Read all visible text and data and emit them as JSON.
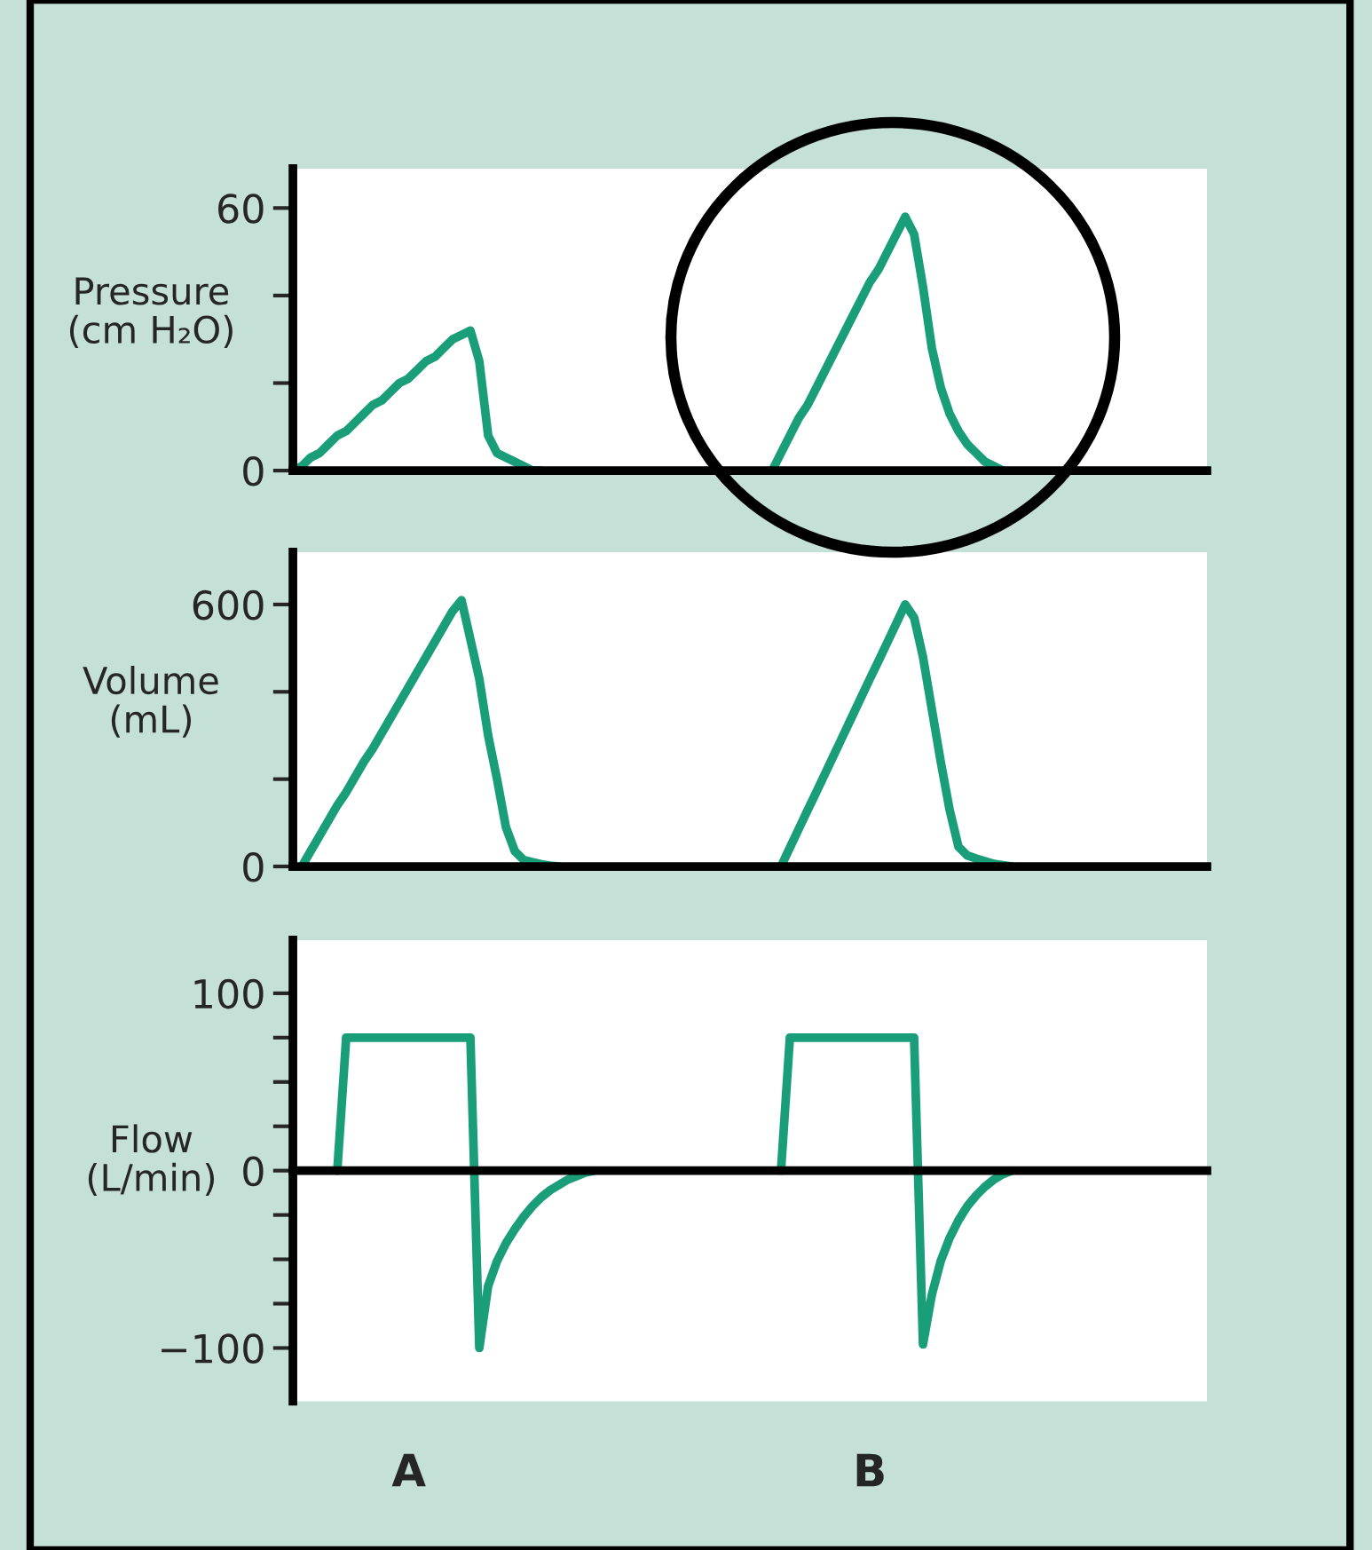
{
  "chart_data": [
    {
      "type": "line",
      "ylabel": "Pressure\n(cm H₂O)",
      "ylim": [
        0,
        69
      ],
      "yticks": [
        0,
        {
          "value": 20,
          "label": null
        },
        {
          "value": 40,
          "label": null
        },
        60
      ],
      "tick_labels": "y",
      "categories": [
        null,
        null,
        null,
        null,
        null,
        null,
        null,
        null,
        null,
        null,
        null,
        null,
        null,
        null,
        null,
        null,
        null,
        null,
        null,
        null,
        null,
        null,
        null,
        null,
        null,
        null,
        null,
        null,
        null,
        null,
        null,
        null,
        null,
        null,
        null,
        null,
        null,
        null,
        null,
        null,
        null,
        null,
        null,
        null,
        null,
        null,
        null,
        null,
        null,
        null,
        null,
        null,
        null,
        null,
        null,
        null,
        null,
        null,
        null,
        null,
        null,
        null,
        null,
        null,
        null,
        null,
        null,
        null,
        null,
        null,
        null,
        null,
        null,
        null,
        null,
        null,
        null,
        null,
        null,
        null,
        null,
        null,
        null,
        null,
        null,
        null,
        null,
        null,
        null,
        null,
        null,
        null,
        null,
        null,
        null,
        null,
        null,
        null,
        null,
        null,
        null,
        null,
        null,
        null
      ],
      "series": [
        {
          "color": "#1a9e7a",
          "values": [
            0,
            1,
            3,
            4,
            6,
            8,
            9,
            11,
            13,
            15,
            16,
            18,
            20,
            21,
            23,
            25,
            26,
            28,
            30,
            31,
            32,
            25,
            8,
            4,
            3,
            2,
            1,
            0,
            0,
            null,
            null,
            null,
            null,
            null,
            null,
            null,
            null,
            null,
            null,
            null,
            null,
            null,
            null,
            null,
            null,
            null,
            null,
            null,
            null,
            null,
            null,
            null,
            null,
            null,
            null,
            null,
            null,
            null,
            null,
            null,
            null,
            null,
            null,
            null,
            null,
            null,
            null,
            null,
            null,
            null,
            null,
            null,
            null,
            null,
            null,
            null,
            null,
            null,
            null,
            null,
            null,
            null,
            null,
            null,
            null,
            null,
            null,
            null,
            null,
            null,
            null,
            null,
            null,
            null,
            null,
            null,
            null,
            null,
            null,
            null,
            null,
            null,
            null,
            null
          ]
        },
        {
          "color": "#1a9e7a",
          "values": [
            null,
            null,
            null,
            null,
            null,
            null,
            null,
            null,
            null,
            null,
            null,
            null,
            null,
            null,
            null,
            null,
            null,
            null,
            null,
            null,
            null,
            null,
            null,
            null,
            null,
            null,
            null,
            null,
            null,
            null,
            null,
            null,
            null,
            null,
            null,
            null,
            null,
            null,
            null,
            null,
            null,
            null,
            null,
            null,
            null,
            null,
            null,
            null,
            null,
            null,
            null,
            null,
            null,
            null,
            0,
            4,
            8,
            12,
            15,
            19,
            23,
            27,
            31,
            35,
            39,
            43,
            46,
            50,
            54,
            58,
            54,
            42,
            28,
            19,
            13,
            9,
            6,
            4,
            2,
            1,
            0,
            null,
            null,
            null,
            null,
            null,
            null,
            null,
            null,
            null,
            null,
            null,
            null,
            null,
            null,
            null,
            null,
            null,
            null,
            null,
            null,
            null,
            null,
            null
          ]
        }
      ]
    },
    {
      "type": "line",
      "ylabel": "Volume\n(mL)",
      "ylim": [
        0,
        720
      ],
      "yticks": [
        0,
        {
          "value": 200,
          "label": null
        },
        {
          "value": 400,
          "label": null
        },
        600
      ],
      "tick_labels": "y",
      "categories": [
        null,
        null,
        null,
        null,
        null,
        null,
        null,
        null,
        null,
        null,
        null,
        null,
        null,
        null,
        null,
        null,
        null,
        null,
        null,
        null,
        null,
        null,
        null,
        null,
        null,
        null,
        null,
        null,
        null,
        null,
        null,
        null,
        null,
        null,
        null,
        null,
        null,
        null,
        null,
        null,
        null,
        null,
        null,
        null,
        null,
        null,
        null,
        null,
        null,
        null,
        null,
        null,
        null,
        null,
        null,
        null,
        null,
        null,
        null,
        null,
        null,
        null,
        null,
        null,
        null,
        null,
        null,
        null,
        null,
        null,
        null,
        null,
        null,
        null,
        null,
        null,
        null,
        null,
        null,
        null,
        null,
        null,
        null,
        null,
        null,
        null,
        null,
        null,
        null,
        null,
        null,
        null,
        null,
        null,
        null,
        null,
        null,
        null,
        null,
        null,
        null,
        null,
        null,
        null
      ],
      "series": [
        {
          "color": "#1a9e7a",
          "values": [
            null,
            0,
            35,
            70,
            105,
            140,
            170,
            205,
            240,
            270,
            305,
            340,
            375,
            410,
            445,
            480,
            515,
            550,
            585,
            610,
            520,
            430,
            300,
            200,
            90,
            35,
            15,
            10,
            5,
            2,
            0,
            null,
            null,
            null,
            null,
            null,
            null,
            null,
            null,
            null,
            null,
            null,
            null,
            null,
            null,
            null,
            null,
            null,
            null,
            null,
            null,
            null,
            null,
            null,
            null,
            null,
            null,
            null,
            null,
            null,
            null,
            null,
            null,
            null,
            null,
            null,
            null,
            null,
            null,
            null,
            null,
            null,
            null,
            null,
            null,
            null,
            null,
            null,
            null,
            null,
            null,
            null,
            null,
            null,
            null,
            null,
            null,
            null,
            null,
            null,
            null,
            null,
            null,
            null,
            null,
            null,
            null,
            null,
            null,
            null,
            null,
            null,
            null,
            null
          ]
        },
        {
          "color": "#1a9e7a",
          "values": [
            null,
            null,
            null,
            null,
            null,
            null,
            null,
            null,
            null,
            null,
            null,
            null,
            null,
            null,
            null,
            null,
            null,
            null,
            null,
            null,
            null,
            null,
            null,
            null,
            null,
            null,
            null,
            null,
            null,
            null,
            null,
            null,
            null,
            null,
            null,
            null,
            null,
            null,
            null,
            null,
            null,
            null,
            null,
            null,
            null,
            null,
            null,
            null,
            null,
            null,
            null,
            null,
            null,
            null,
            null,
            0,
            43,
            86,
            129,
            171,
            214,
            257,
            300,
            343,
            386,
            429,
            471,
            514,
            557,
            600,
            570,
            480,
            360,
            240,
            130,
            45,
            25,
            18,
            12,
            6,
            3,
            0,
            null,
            null,
            null,
            null,
            null,
            null,
            null,
            null,
            null,
            null,
            null,
            null,
            null,
            null,
            null,
            null,
            null,
            null,
            null,
            null,
            null,
            null
          ]
        }
      ]
    },
    {
      "type": "line",
      "ylabel": "Flow\n(L/min)",
      "ylim": [
        -130,
        130
      ],
      "yticks": [
        {
          "value": -100,
          "label": "−100"
        },
        {
          "value": -75,
          "label": null
        },
        {
          "value": -50,
          "label": null
        },
        {
          "value": -25,
          "label": null
        },
        0,
        {
          "value": 25,
          "label": null
        },
        {
          "value": 50,
          "label": null
        },
        {
          "value": 75,
          "label": null
        },
        100
      ],
      "tick_labels": "y",
      "annotations": [
        "A",
        "B"
      ],
      "categories": [
        null,
        null,
        null,
        null,
        null,
        null,
        null,
        null,
        null,
        null,
        null,
        null,
        null,
        null,
        null,
        null,
        null,
        null,
        null,
        null,
        null,
        null,
        null,
        null,
        null,
        null,
        null,
        null,
        null,
        null,
        null,
        null,
        null,
        null,
        null,
        null,
        null,
        null,
        null,
        null,
        null,
        null,
        null,
        null,
        null,
        null,
        null,
        null,
        null,
        null,
        null,
        null,
        null,
        null,
        null,
        null,
        null,
        null,
        null,
        null,
        null,
        null,
        null,
        null,
        null,
        null,
        null,
        null,
        null,
        null,
        null,
        null,
        null,
        null,
        null,
        null,
        null,
        null,
        null,
        null,
        null,
        null,
        null,
        null,
        null,
        null,
        null,
        null,
        null,
        null,
        null,
        null,
        null,
        null,
        null,
        null,
        null,
        null,
        null,
        null,
        null,
        null,
        null,
        null
      ],
      "series": [
        {
          "color": "#1a9e7a",
          "values": [
            null,
            null,
            null,
            null,
            null,
            0,
            75,
            75,
            75,
            75,
            75,
            75,
            75,
            75,
            75,
            75,
            75,
            75,
            75,
            75,
            75,
            -100,
            -65,
            -51,
            -41,
            -33,
            -26,
            -20,
            -15,
            -11,
            -8,
            -5,
            -3,
            -1,
            0,
            null,
            null,
            null,
            null,
            null,
            null,
            null,
            null,
            null,
            null,
            null,
            null,
            null,
            null,
            null,
            null,
            null,
            null,
            null,
            null,
            null,
            null,
            null,
            null,
            null,
            null,
            null,
            null,
            null,
            null,
            null,
            null,
            null,
            null,
            null,
            null,
            null,
            null,
            null,
            null,
            null,
            null,
            null,
            null,
            null,
            null,
            null,
            null,
            null,
            null,
            null,
            null,
            null,
            null,
            null,
            null,
            null,
            null,
            null,
            null,
            null,
            null,
            null,
            null,
            null,
            null,
            null,
            null,
            null
          ]
        },
        {
          "color": "#1a9e7a",
          "values": [
            null,
            null,
            null,
            null,
            null,
            null,
            null,
            null,
            null,
            null,
            null,
            null,
            null,
            null,
            null,
            null,
            null,
            null,
            null,
            null,
            null,
            null,
            null,
            null,
            null,
            null,
            null,
            null,
            null,
            null,
            null,
            null,
            null,
            null,
            null,
            null,
            null,
            null,
            null,
            null,
            null,
            null,
            null,
            null,
            null,
            null,
            null,
            null,
            null,
            null,
            null,
            null,
            null,
            null,
            null,
            0,
            75,
            75,
            75,
            75,
            75,
            75,
            75,
            75,
            75,
            75,
            75,
            75,
            75,
            75,
            75,
            -98,
            -70,
            -51,
            -38,
            -28,
            -20,
            -14,
            -9,
            -5,
            -2,
            0,
            null,
            null,
            null,
            null,
            null,
            null,
            null,
            null,
            null,
            null,
            null,
            null,
            null,
            null,
            null,
            null,
            null,
            null,
            null,
            null,
            null,
            null
          ]
        }
      ]
    }
  ]
}
